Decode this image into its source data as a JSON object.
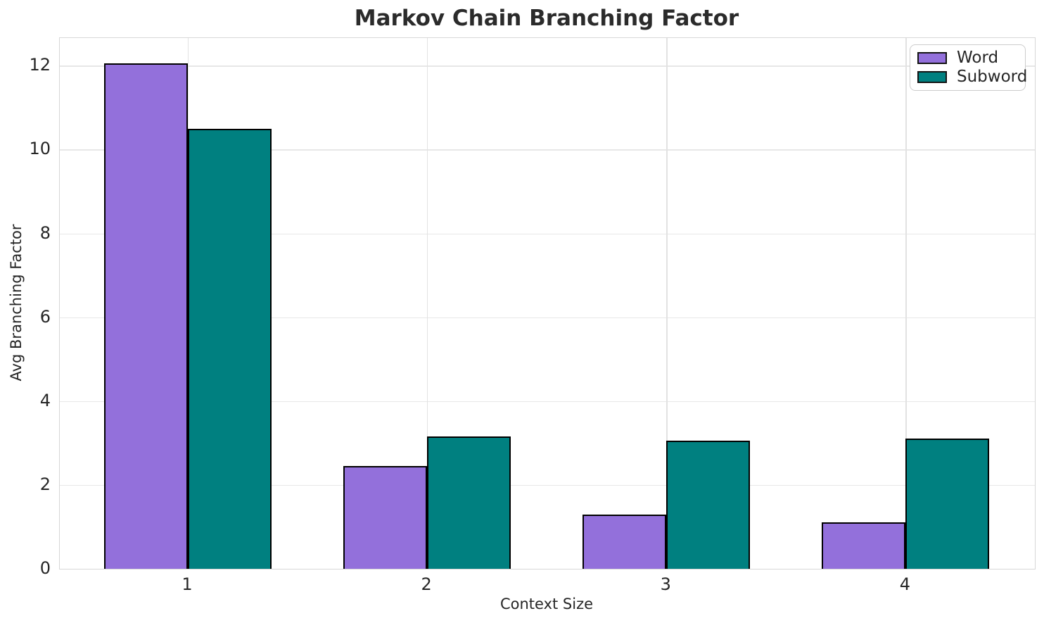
{
  "chart_data": {
    "type": "bar",
    "title": "Markov Chain Branching Factor",
    "xlabel": "Context Size",
    "ylabel": "Avg Branching Factor",
    "categories": [
      "1",
      "2",
      "3",
      "4"
    ],
    "series": [
      {
        "name": "Word",
        "color": "#9370DB",
        "values": [
          12.05,
          2.45,
          1.3,
          1.1
        ]
      },
      {
        "name": "Subword",
        "color": "#008080",
        "values": [
          10.5,
          3.15,
          3.05,
          3.1
        ]
      }
    ],
    "bar_width": 0.35,
    "bar_edge_color": "#000000",
    "xlim": [
      0.465,
      4.54
    ],
    "ylim": [
      0,
      12.66
    ],
    "yticks": [
      0,
      2,
      4,
      6,
      8,
      10,
      12
    ],
    "grid": true,
    "legend_position": "upper right"
  }
}
